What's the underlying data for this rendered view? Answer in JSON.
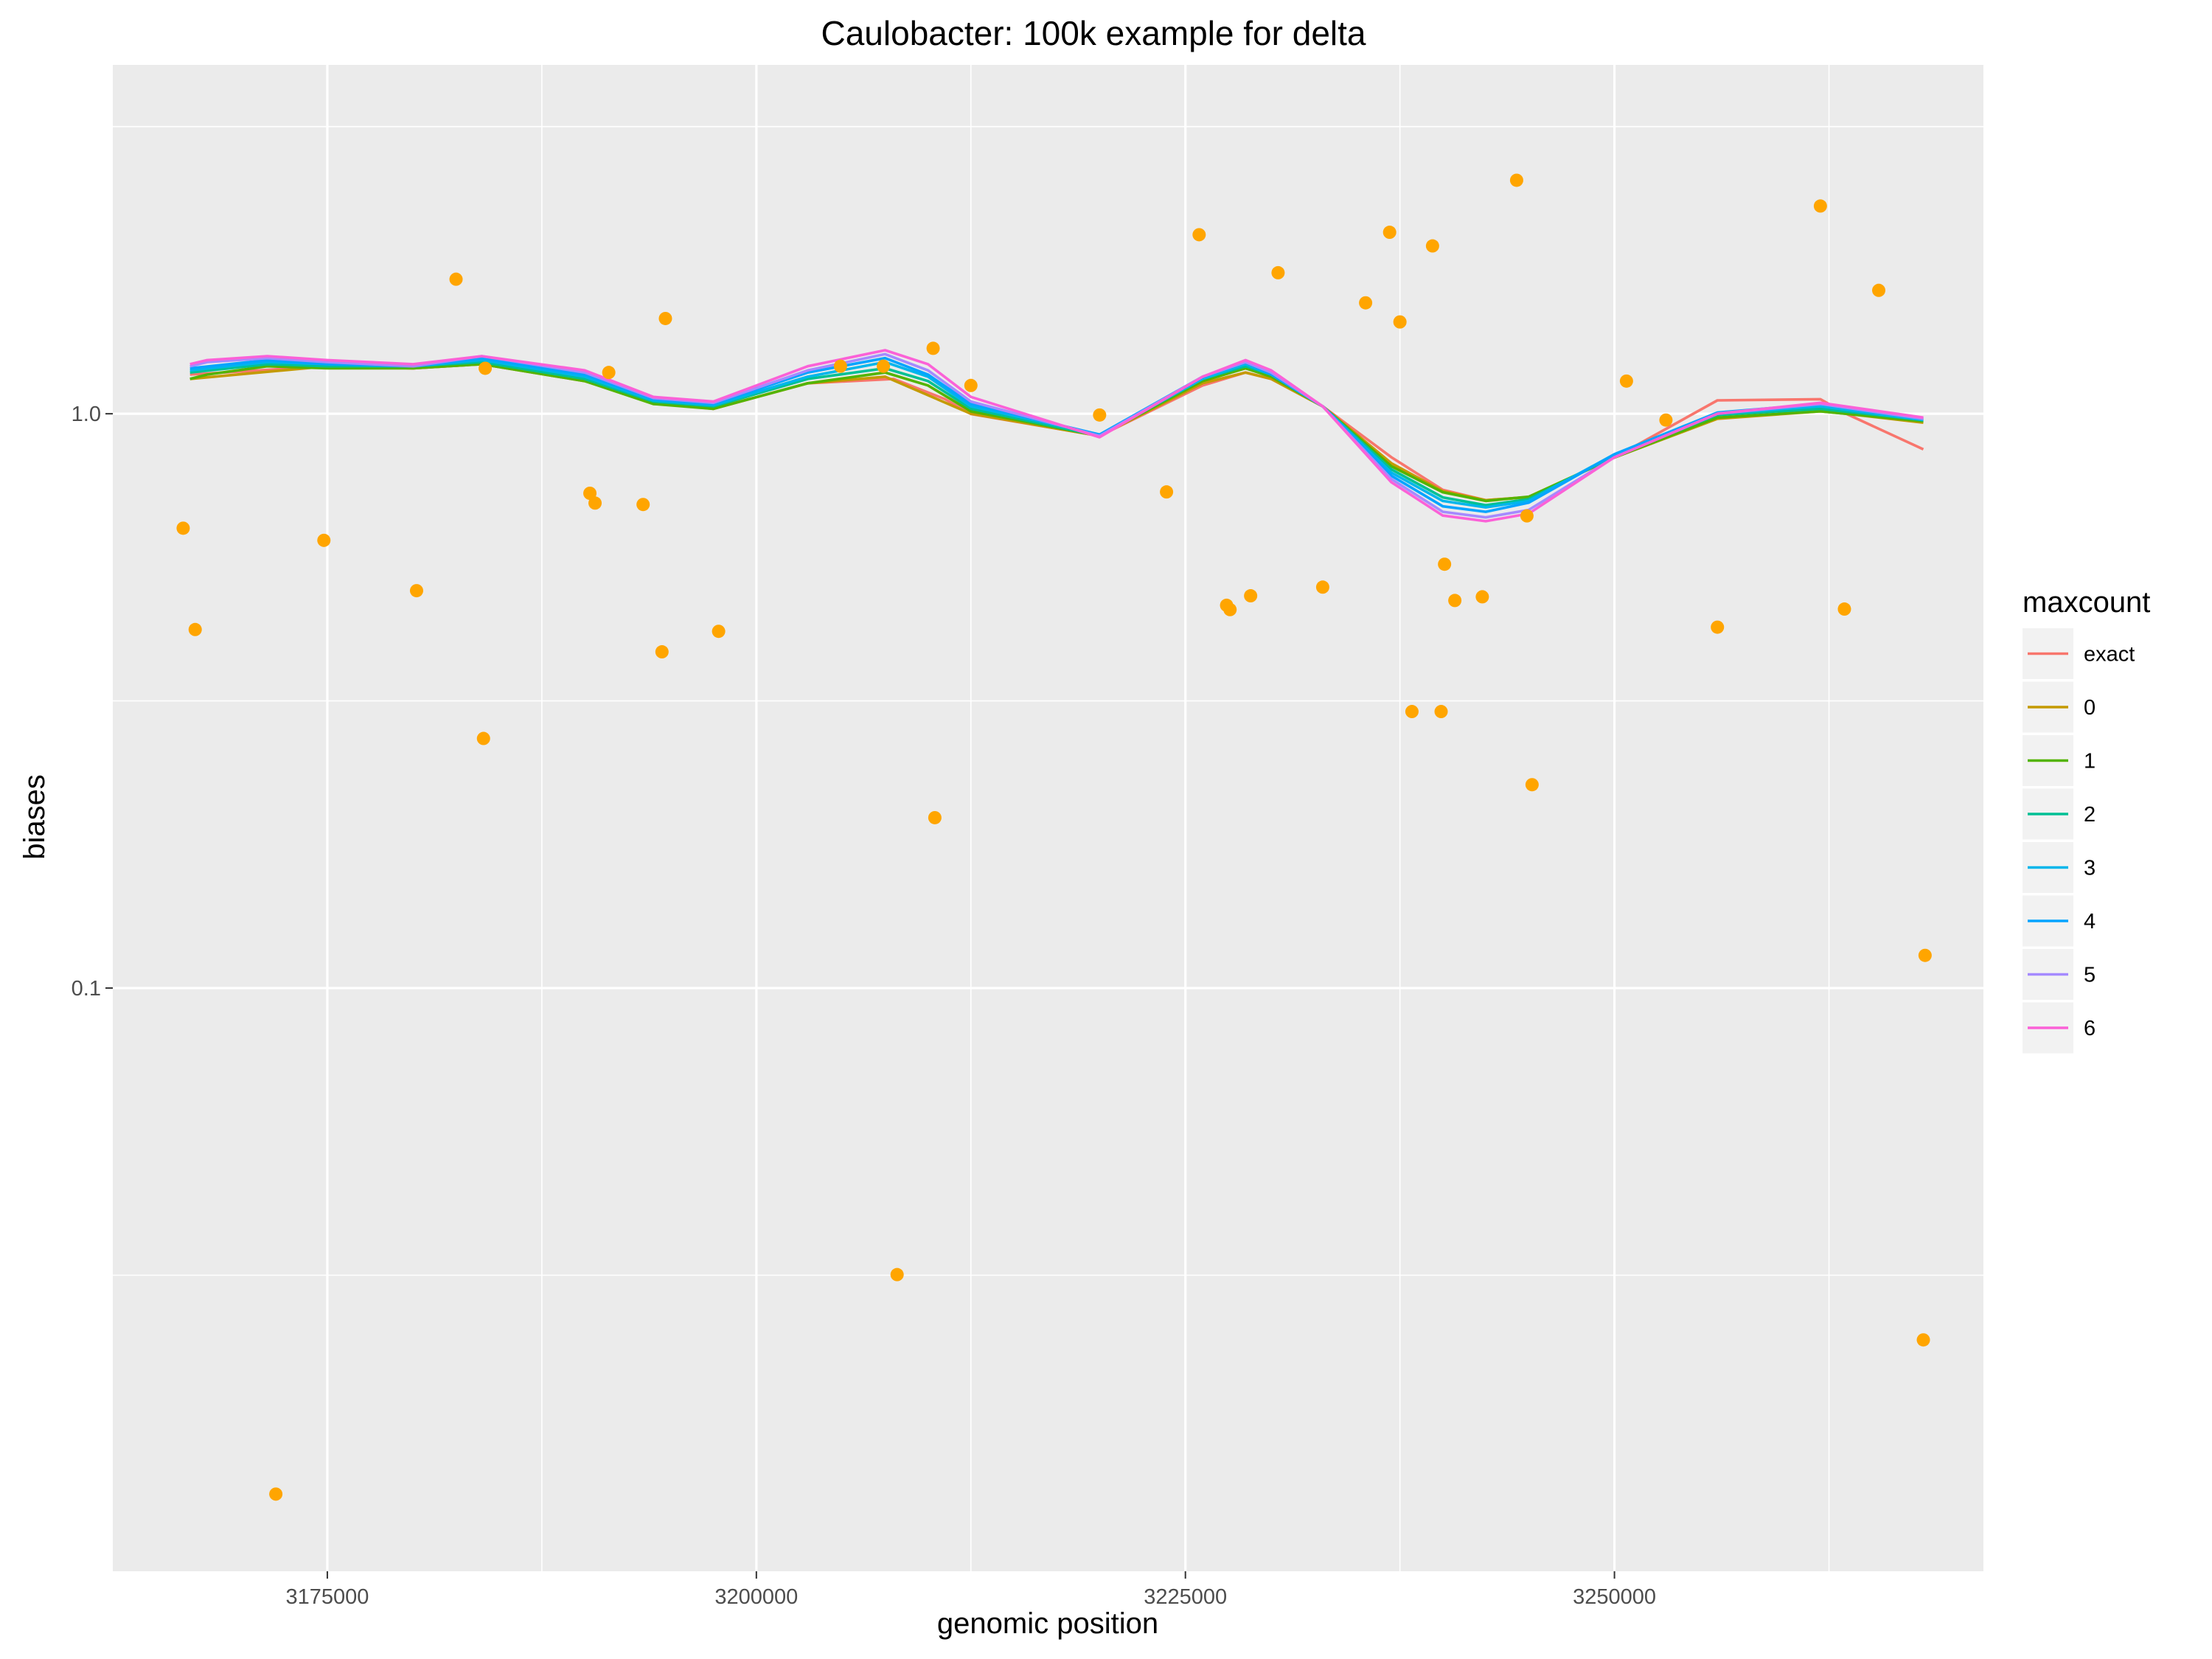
{
  "chart_data": {
    "type": "line",
    "title": "Caulobacter: 100k example for delta",
    "xlabel": "genomic position",
    "ylabel": "biases",
    "y_scale": "log10",
    "xlim": [
      3162500,
      3271500
    ],
    "ylim": [
      0.00965,
      4.05
    ],
    "x_ticks": [
      3175000,
      3200000,
      3225000,
      3250000
    ],
    "x_tick_labels": [
      "3175000",
      "3200000",
      "3225000",
      "3250000"
    ],
    "y_ticks": [
      0.1,
      1.0
    ],
    "y_tick_labels": [
      "0.1",
      "1.0"
    ],
    "grid": true,
    "legend": {
      "title": "maxcount",
      "position": "right"
    },
    "series": [
      {
        "name": "exact",
        "color": "#F8766D",
        "x": [
          3167000,
          3175000,
          3180000,
          3184000,
          3190000,
          3194000,
          3197500,
          3203000,
          3208000,
          3211000,
          3212500,
          3220000,
          3226000,
          3228500,
          3230000,
          3233000,
          3237000,
          3240000,
          3242500,
          3245000,
          3250000,
          3256000,
          3262000,
          3263500,
          3268000
        ],
        "y": [
          1.17,
          1.21,
          1.2,
          1.22,
          1.14,
          1.05,
          1.02,
          1.13,
          1.15,
          1.06,
          0.999,
          0.915,
          1.12,
          1.18,
          1.15,
          1.03,
          0.84,
          0.737,
          0.707,
          0.716,
          0.839,
          1.055,
          1.06,
          1.0,
          0.867
        ]
      },
      {
        "name": "0",
        "color": "#C49A00",
        "x": [
          3167000,
          3175000,
          3180000,
          3184000,
          3190000,
          3194000,
          3197500,
          3203000,
          3207500,
          3212500,
          3220000,
          3226000,
          3228500,
          3230000,
          3233000,
          3237000,
          3240000,
          3242500,
          3245000,
          3250000,
          3256000,
          3262000,
          3263500,
          3268000
        ],
        "y": [
          1.15,
          1.21,
          1.2,
          1.22,
          1.14,
          1.045,
          1.02,
          1.13,
          1.16,
          1.0,
          0.915,
          1.13,
          1.18,
          1.15,
          1.03,
          0.82,
          0.733,
          0.707,
          0.716,
          0.839,
          0.98,
          1.01,
          1.0,
          0.965
        ]
      },
      {
        "name": "1",
        "color": "#53B400",
        "x": [
          3167000,
          3168000,
          3171500,
          3175000,
          3180000,
          3184000,
          3190000,
          3194000,
          3197500,
          3203000,
          3207500,
          3210000,
          3212500,
          3220000,
          3226000,
          3228500,
          3230000,
          3233000,
          3237000,
          3240000,
          3242500,
          3245000,
          3250000,
          3256000,
          3262000,
          3268000
        ],
        "y": [
          1.15,
          1.17,
          1.21,
          1.2,
          1.2,
          1.22,
          1.14,
          1.04,
          1.02,
          1.13,
          1.18,
          1.12,
          1.01,
          0.915,
          1.14,
          1.2,
          1.16,
          1.03,
          0.81,
          0.73,
          0.705,
          0.717,
          0.839,
          0.985,
          1.01,
          0.97
        ]
      },
      {
        "name": "2",
        "color": "#00C094",
        "x": [
          3167000,
          3171500,
          3175000,
          3180000,
          3184000,
          3190000,
          3194000,
          3197500,
          3203000,
          3207500,
          3210000,
          3212500,
          3220000,
          3226000,
          3228500,
          3230000,
          3233000,
          3237000,
          3240000,
          3242500,
          3245000,
          3250000,
          3256000,
          3262000,
          3268000
        ],
        "y": [
          1.18,
          1.22,
          1.21,
          1.21,
          1.23,
          1.15,
          1.05,
          1.03,
          1.15,
          1.2,
          1.14,
          1.02,
          0.915,
          1.15,
          1.21,
          1.17,
          1.03,
          0.8,
          0.715,
          0.693,
          0.71,
          0.845,
          0.995,
          1.02,
          0.975
        ]
      },
      {
        "name": "3",
        "color": "#00B6EB",
        "x": [
          3167000,
          3171500,
          3175000,
          3180000,
          3184000,
          3190000,
          3194000,
          3197500,
          3203000,
          3207500,
          3210000,
          3212500,
          3220000,
          3226000,
          3228500,
          3230000,
          3233000,
          3237000,
          3240000,
          3242500,
          3245000,
          3250000,
          3256000,
          3262000,
          3268000
        ],
        "y": [
          1.19,
          1.23,
          1.22,
          1.21,
          1.24,
          1.16,
          1.055,
          1.035,
          1.16,
          1.23,
          1.16,
          1.03,
          0.92,
          1.15,
          1.22,
          1.17,
          1.03,
          0.79,
          0.705,
          0.687,
          0.705,
          0.85,
          1.0,
          1.03,
          0.975
        ]
      },
      {
        "name": "4",
        "color": "#06A4FF",
        "x": [
          3167000,
          3171500,
          3175000,
          3180000,
          3184000,
          3190000,
          3194000,
          3197500,
          3203000,
          3207500,
          3210000,
          3212500,
          3220000,
          3226000,
          3228500,
          3230000,
          3233000,
          3237000,
          3240000,
          3242500,
          3245000,
          3250000,
          3256000,
          3262000,
          3268000
        ],
        "y": [
          1.2,
          1.24,
          1.22,
          1.21,
          1.25,
          1.17,
          1.06,
          1.04,
          1.18,
          1.25,
          1.17,
          1.04,
          0.92,
          1.16,
          1.23,
          1.17,
          1.03,
          0.78,
          0.69,
          0.675,
          0.7,
          0.85,
          1.005,
          1.04,
          0.98
        ]
      },
      {
        "name": "5",
        "color": "#A58AFF",
        "x": [
          3167000,
          3168000,
          3171500,
          3175000,
          3180000,
          3184000,
          3190000,
          3194000,
          3197500,
          3203000,
          3207500,
          3210000,
          3212500,
          3220000,
          3226000,
          3228500,
          3230000,
          3233000,
          3237000,
          3240000,
          3242500,
          3245000,
          3250000,
          3256000,
          3262000,
          3268000
        ],
        "y": [
          1.21,
          1.23,
          1.25,
          1.23,
          1.21,
          1.26,
          1.18,
          1.065,
          1.045,
          1.19,
          1.27,
          1.19,
          1.05,
          0.915,
          1.16,
          1.23,
          1.18,
          1.03,
          0.77,
          0.675,
          0.66,
          0.68,
          0.84,
          1.0,
          1.04,
          0.98
        ]
      },
      {
        "name": "6",
        "color": "#FB61D7",
        "x": [
          3167000,
          3168000,
          3171500,
          3175000,
          3180000,
          3184000,
          3190000,
          3194000,
          3197500,
          3203000,
          3207500,
          3210000,
          3212500,
          3220000,
          3226000,
          3228500,
          3230000,
          3233000,
          3237000,
          3240000,
          3242500,
          3245000,
          3250000,
          3256000,
          3262000,
          3268000
        ],
        "y": [
          1.22,
          1.24,
          1.26,
          1.24,
          1.22,
          1.26,
          1.19,
          1.07,
          1.05,
          1.21,
          1.29,
          1.22,
          1.07,
          0.91,
          1.16,
          1.24,
          1.19,
          1.03,
          0.76,
          0.665,
          0.65,
          0.67,
          0.84,
          1.0,
          1.045,
          0.985
        ]
      }
    ],
    "points": {
      "color": "#FFA500",
      "x": [
        3166600,
        3167300,
        3172000,
        3174800,
        3180200,
        3182500,
        3184100,
        3184200,
        3190300,
        3190600,
        3191400,
        3193400,
        3194500,
        3194700,
        3197800,
        3204900,
        3207400,
        3208200,
        3210300,
        3210400,
        3212500,
        3220000,
        3223900,
        3225800,
        3227400,
        3227600,
        3228800,
        3230400,
        3233000,
        3235500,
        3236900,
        3237500,
        3238200,
        3239400,
        3239900,
        3240100,
        3240700,
        3242300,
        3244300,
        3244900,
        3245200,
        3250700,
        3253000,
        3256000,
        3262000,
        3263400,
        3265400,
        3268000,
        3268100
      ],
      "y": [
        0.632,
        0.421,
        0.01315,
        0.602,
        0.492,
        1.715,
        0.272,
        1.2,
        0.727,
        0.699,
        1.18,
        0.695,
        0.385,
        1.465,
        0.418,
        1.21,
        1.21,
        0.0317,
        1.3,
        0.198,
        1.12,
        0.995,
        0.731,
        2.05,
        0.464,
        0.456,
        0.482,
        1.76,
        0.499,
        1.56,
        2.07,
        1.445,
        0.303,
        1.96,
        0.303,
        0.547,
        0.473,
        0.48,
        2.55,
        0.664,
        0.226,
        1.14,
        0.975,
        0.425,
        2.3,
        0.457,
        1.64,
        0.0244,
        0.114
      ]
    }
  }
}
